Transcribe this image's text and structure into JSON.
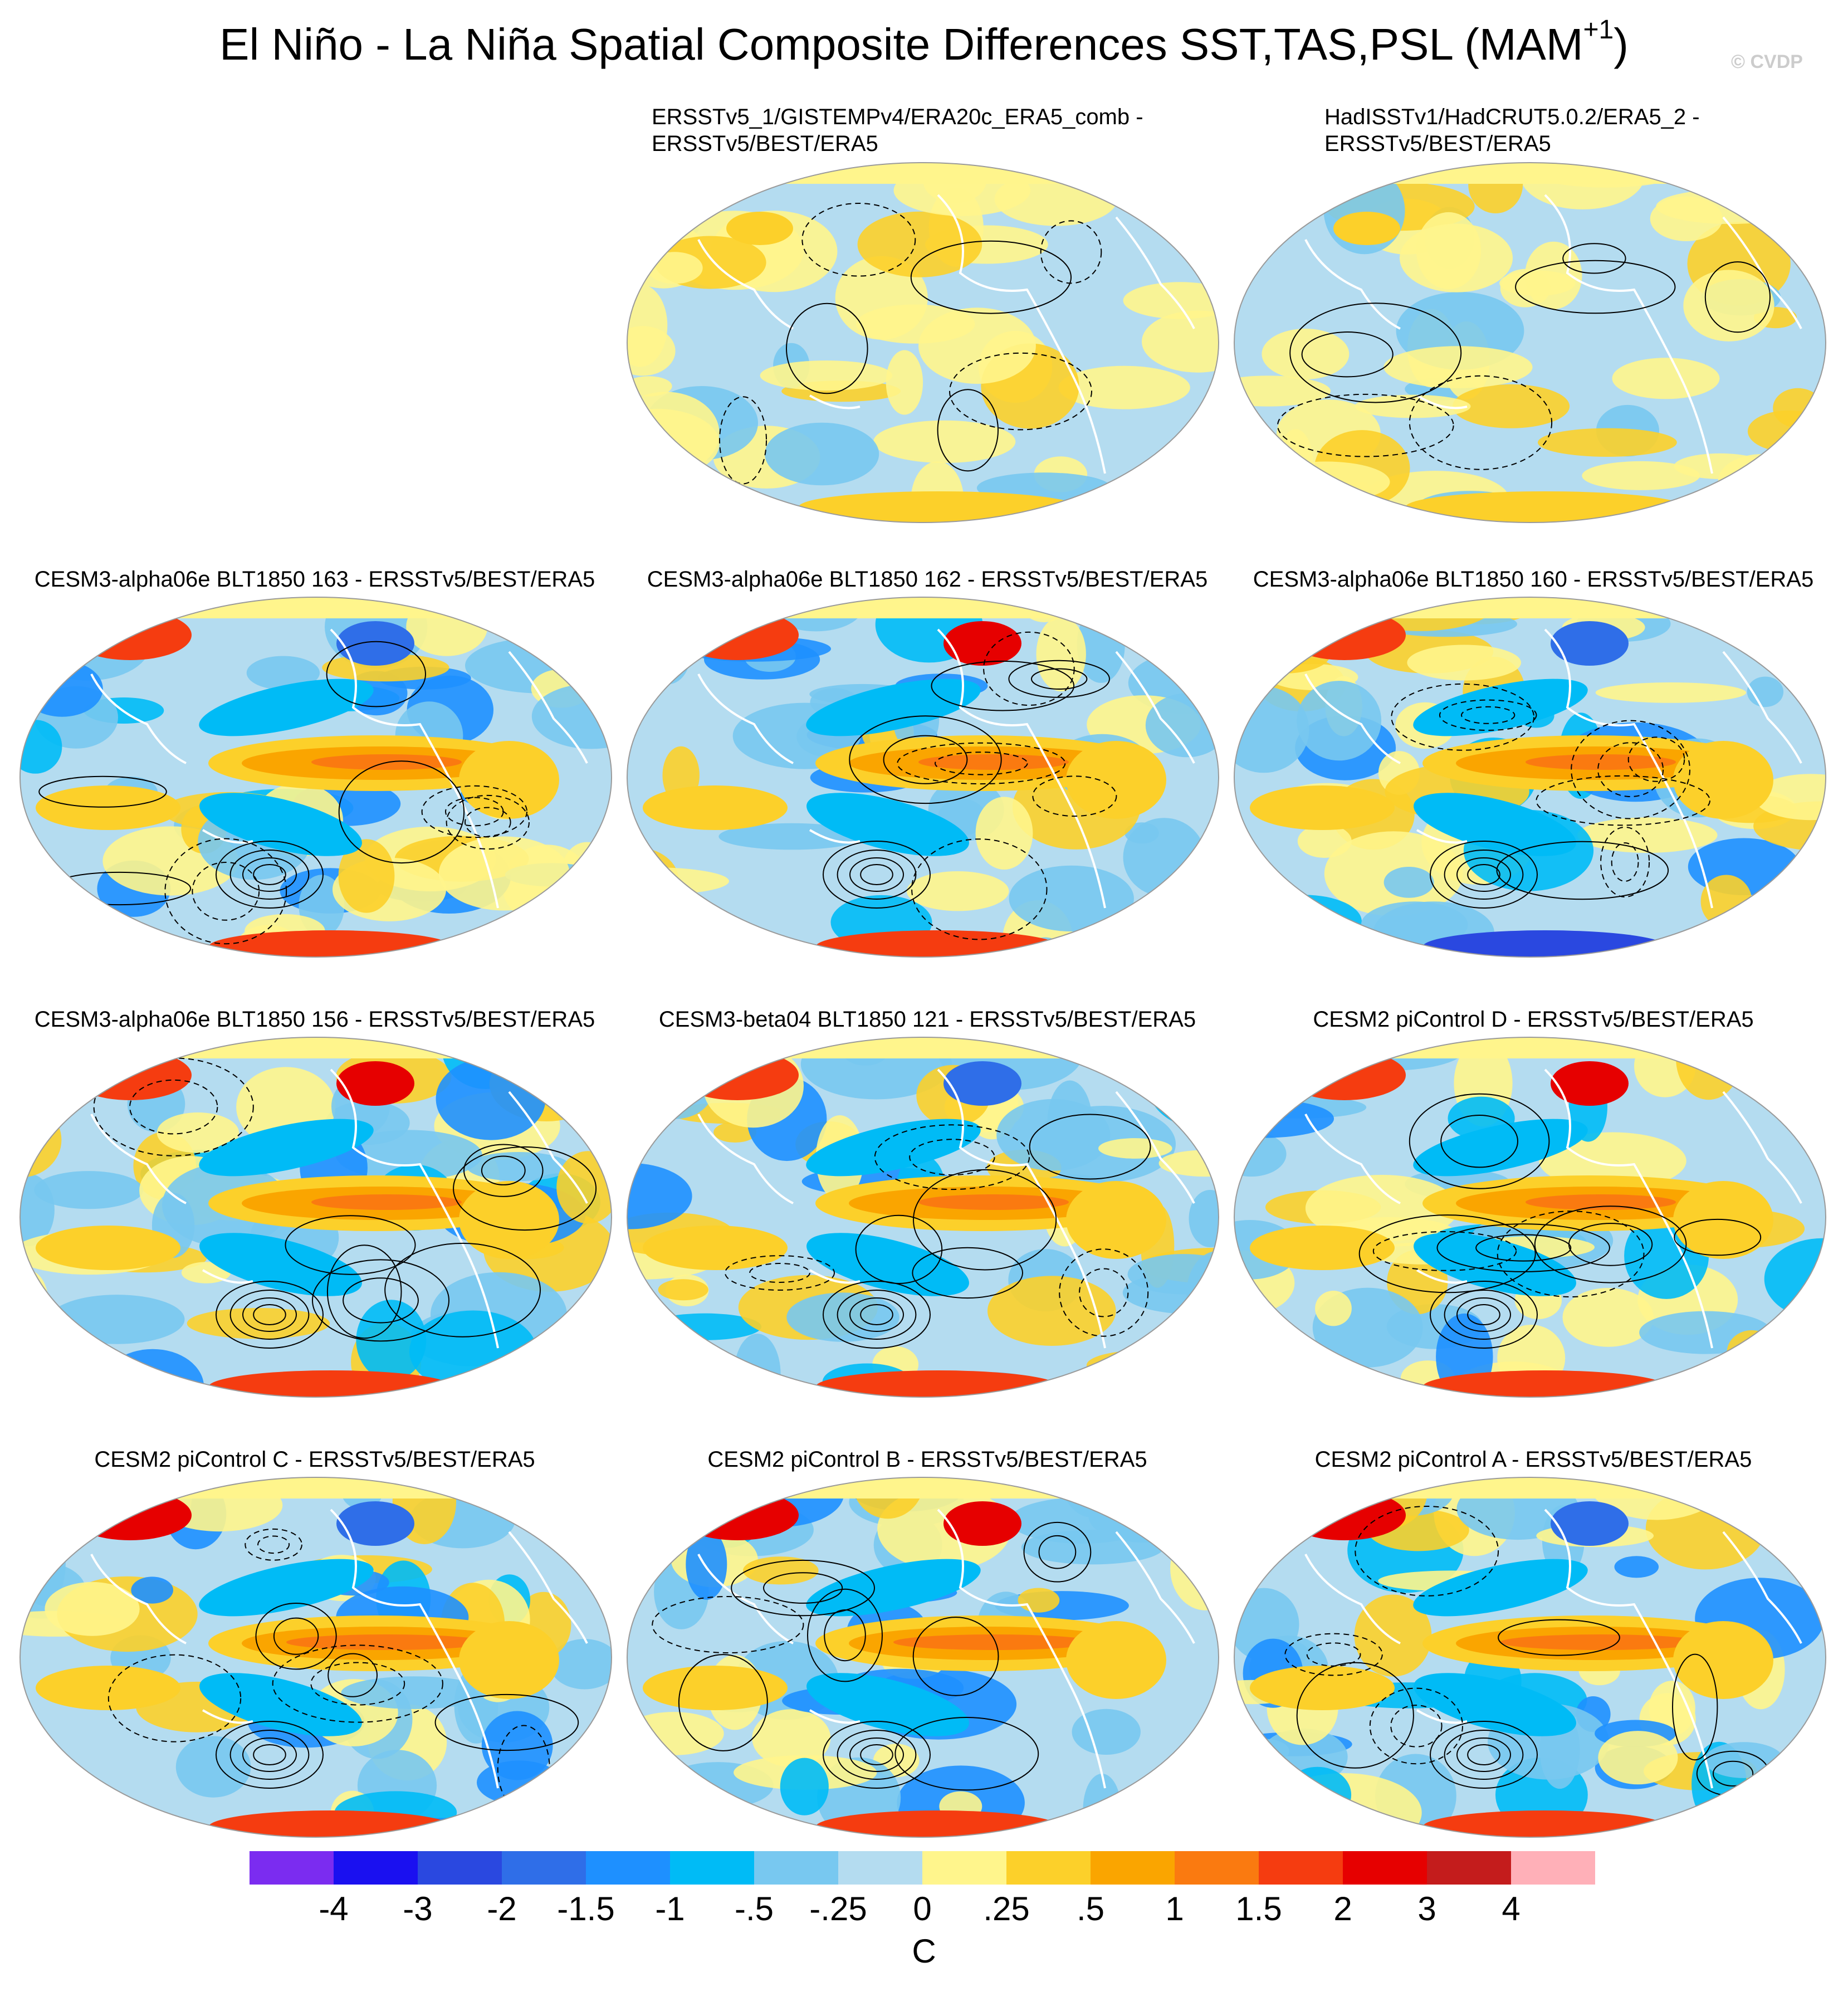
{
  "title": {
    "main": "El Niño - La Niña Spatial Composite Differences SST,TAS,PSL (MAM",
    "superscript": "+1",
    "close": ")"
  },
  "credit": "© CVDP",
  "panels": [
    {
      "line1": "ERSSTv5_1/GISTEMPv4/ERA20c_ERA5_comb -",
      "line2": "ERSSTv5/BEST/ERA5",
      "pattern": "obs"
    },
    {
      "line1": "HadISSTv1/HadCRUT5.0.2/ERA5_2 -",
      "line2": "ERSSTv5/BEST/ERA5",
      "pattern": "obs"
    },
    {
      "line1": "CESM3-alpha06e BLT1850 163 - ERSSTv5/BEST/ERA5",
      "line2": "",
      "pattern": "model"
    },
    {
      "line1": "CESM3-alpha06e BLT1850 162 - ERSSTv5/BEST/ERA5",
      "line2": "",
      "pattern": "model"
    },
    {
      "line1": "CESM3-alpha06e BLT1850 160 - ERSSTv5/BEST/ERA5",
      "line2": "",
      "pattern": "model"
    },
    {
      "line1": "CESM3-alpha06e BLT1850 156 - ERSSTv5/BEST/ERA5",
      "line2": "",
      "pattern": "model"
    },
    {
      "line1": "CESM3-beta04 BLT1850 121 - ERSSTv5/BEST/ERA5",
      "line2": "",
      "pattern": "model"
    },
    {
      "line1": "CESM2 piControl D - ERSSTv5/BEST/ERA5",
      "line2": "",
      "pattern": "model"
    },
    {
      "line1": "CESM2 piControl C - ERSSTv5/BEST/ERA5",
      "line2": "",
      "pattern": "strong"
    },
    {
      "line1": "CESM2 piControl B - ERSSTv5/BEST/ERA5",
      "line2": "",
      "pattern": "strong"
    },
    {
      "line1": "CESM2 piControl A - ERSSTv5/BEST/ERA5",
      "line2": "",
      "pattern": "strong"
    }
  ],
  "colorbar": {
    "colors": [
      "#7b2cf0",
      "#1a10f0",
      "#2a48e0",
      "#2f6ee8",
      "#1e90ff",
      "#00bbf6",
      "#78c8f0",
      "#b4dcf0",
      "#fff58c",
      "#fcd02a",
      "#faa500",
      "#fa7a10",
      "#f53c10",
      "#e60000",
      "#c41c1c",
      "#ffb0b8"
    ],
    "labels": [
      "-4",
      "-3",
      "-2",
      "-1.5",
      "-1",
      "-.5",
      "-.25",
      "0",
      ".25",
      ".5",
      "1",
      "1.5",
      "2",
      "3",
      "4"
    ],
    "unit": "C"
  }
}
